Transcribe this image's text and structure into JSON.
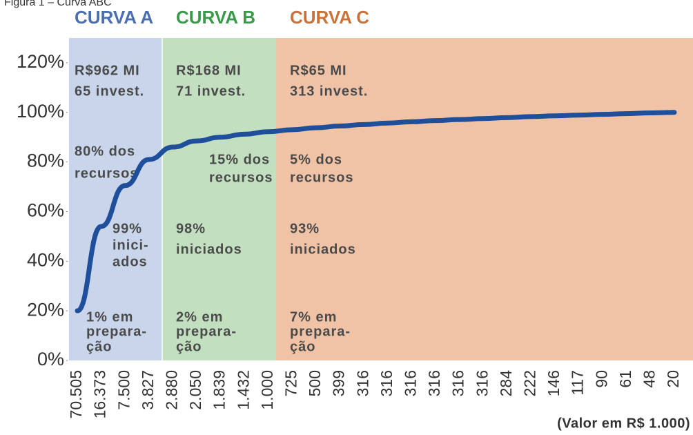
{
  "chart_data": {
    "type": "line",
    "title": "Figura 1 – Curva ABC",
    "categories": [
      "70.505",
      "16.373",
      "7.500",
      "3.827",
      "2.880",
      "2.050",
      "1.839",
      "1.432",
      "1.000",
      "725",
      "500",
      "399",
      "316",
      "316",
      "316",
      "316",
      "316",
      "316",
      "284",
      "222",
      "146",
      "117",
      "90",
      "61",
      "48",
      "20"
    ],
    "values": [
      20,
      54,
      70.5,
      81,
      86,
      88.5,
      90,
      91.2,
      92.2,
      93,
      93.8,
      94.5,
      95.1,
      95.7,
      96.2,
      96.7,
      97.1,
      97.5,
      97.9,
      98.3,
      98.6,
      98.9,
      99.2,
      99.5,
      99.8,
      100
    ],
    "color": "#1f4e9a",
    "ylim": [
      0,
      130
    ],
    "yticks": [
      {
        "value": 0,
        "label": "0%"
      },
      {
        "value": 20,
        "label": "20%"
      },
      {
        "value": 40,
        "label": "40%"
      },
      {
        "value": 60,
        "label": "60%"
      },
      {
        "value": 80,
        "label": "80%"
      },
      {
        "value": 100,
        "label": "100%"
      },
      {
        "value": 120,
        "label": "120%"
      }
    ],
    "xlabel": "(Valor em R$ 1.000)",
    "bands": [
      {
        "label": "CURVA A",
        "label_color": "#4a6fb0",
        "fill": "#c9d5ea",
        "notes": [
          "R$962 MI",
          "65 invest.",
          "80% dos",
          "recursos",
          "99%",
          "inici-",
          "ados",
          "1% em",
          "prepara-",
          "ção"
        ]
      },
      {
        "label": "CURVA B",
        "label_color": "#3a9a4a",
        "fill": "#c2dfc0",
        "notes": [
          "R$168 MI",
          "71 invest.",
          "15% dos",
          "recursos",
          "98%",
          "iniciados",
          "2% em",
          "prepara-",
          "ção"
        ]
      },
      {
        "label": "CURVA C",
        "label_color": "#c9733a",
        "fill": "#f0c3a6",
        "notes": [
          "R$65 MI",
          "313 invest.",
          "5% dos",
          "recursos",
          "93%",
          "iniciados",
          "7% em",
          "prepara-",
          "ção"
        ]
      }
    ]
  }
}
